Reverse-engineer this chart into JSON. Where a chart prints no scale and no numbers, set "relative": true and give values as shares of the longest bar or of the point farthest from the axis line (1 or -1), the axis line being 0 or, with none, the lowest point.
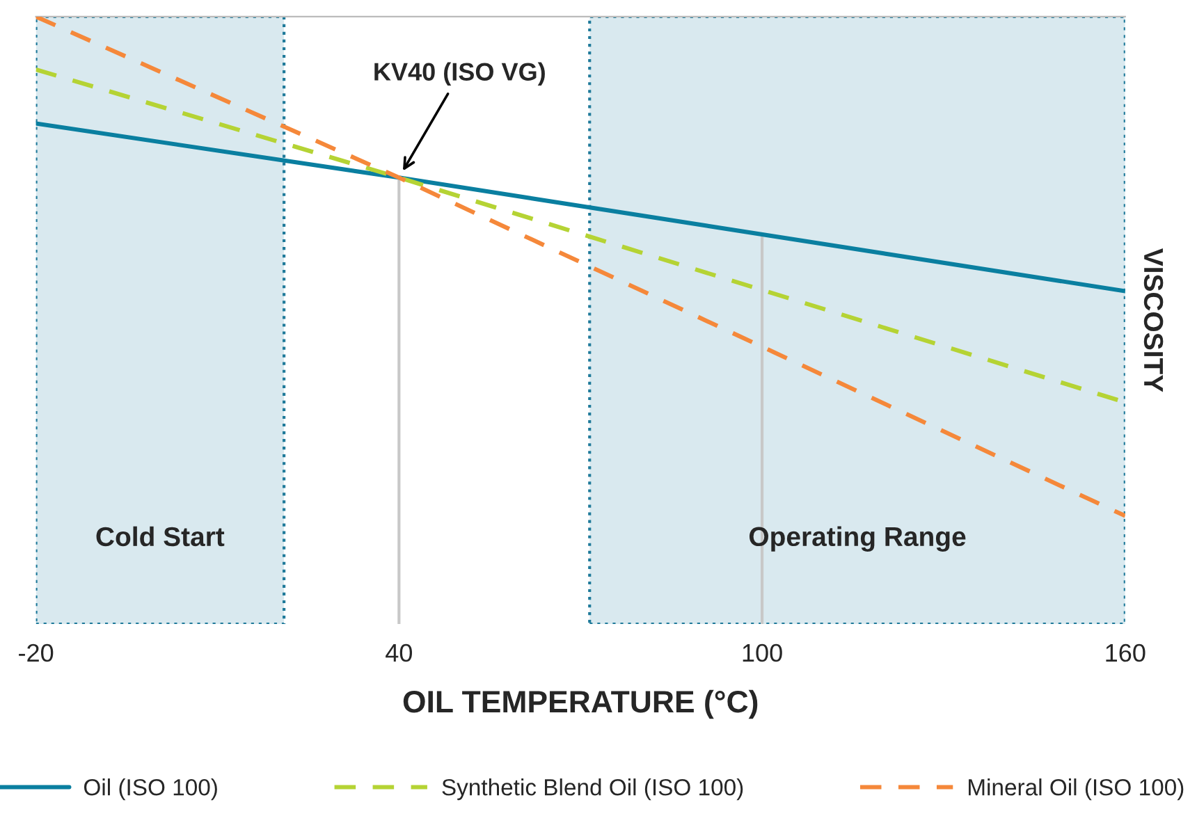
{
  "chart_data": {
    "type": "line",
    "relative": true,
    "xlabel": "OIL TEMPERATURE (°C)",
    "ylabel": "VISCOSITY",
    "x": [
      -20,
      40,
      160
    ],
    "xlim": [
      -20,
      160
    ],
    "xticks": [
      -20,
      40,
      100,
      160
    ],
    "tick_labels": "x",
    "grid": false,
    "legend": "bottom",
    "series": [
      {
        "name": "Oil (ISO 100)",
        "color": "#0a7fa0",
        "values": [
          0.824,
          0.735,
          0.548
        ],
        "line_style": "solid"
      },
      {
        "name": "Synthetic Blend Oil (ISO 100)",
        "color": "#b5d334",
        "values": [
          0.913,
          0.735,
          0.365
        ],
        "line_style": "dashed"
      },
      {
        "name": "Mineral Oil (ISO 100)",
        "color": "#f5883a",
        "values": [
          1.0,
          0.735,
          0.178
        ],
        "line_style": "dashed"
      }
    ],
    "bands": [
      {
        "axis": "x",
        "from": -20,
        "to": 21,
        "label": "Cold Start",
        "color": "#d9e9ef"
      },
      {
        "axis": "x",
        "from": 71.5,
        "to": 160,
        "label": "Operating Range",
        "color": "#d9e9ef"
      }
    ],
    "ref_lines": [
      {
        "axis": "x",
        "value": 40,
        "color": "#c8c8c8"
      },
      {
        "axis": "x",
        "value": 100,
        "color": "#c8c8c8"
      }
    ],
    "annotations": [
      {
        "text": "KV40 (ISO VG)",
        "x": 40,
        "y": 0.735
      }
    ]
  }
}
